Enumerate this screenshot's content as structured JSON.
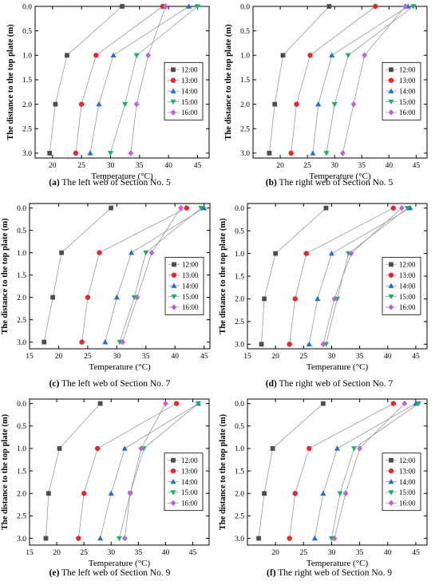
{
  "panels": [
    {
      "letter": "(a)",
      "caption": "The left web of Section No. 5"
    },
    {
      "letter": "(b)",
      "caption": "The right web of Section No. 5"
    },
    {
      "letter": "(c)",
      "caption": "The left web of Section No. 7"
    },
    {
      "letter": "(d)",
      "caption": "The right web of Section No. 7"
    },
    {
      "letter": "(e)",
      "caption": "The left web of Section No. 9"
    },
    {
      "letter": "(f)",
      "caption": "The right web of Section No. 9"
    }
  ],
  "series_style": [
    {
      "name": "12:00",
      "color": "#4d4d4d",
      "marker": "square"
    },
    {
      "name": "13:00",
      "color": "#e8262b",
      "marker": "circle"
    },
    {
      "name": "14:00",
      "color": "#1f6fd6",
      "marker": "triangle-up"
    },
    {
      "name": "15:00",
      "color": "#17b35f",
      "marker": "triangle-down"
    },
    {
      "name": "16:00",
      "color": "#c25ee0",
      "marker": "diamond"
    }
  ],
  "chart_data": [
    {
      "type": "line",
      "xlabel": "Temperature (°C)",
      "ylabel": "The distance to the top plate (m)",
      "xlim": [
        17,
        47
      ],
      "xticks": [
        20,
        25,
        30,
        35,
        40,
        45
      ],
      "ylim": [
        0,
        3.1
      ],
      "y_inverted": true,
      "yticks": [
        "0.0",
        "0.5",
        "1.0",
        "1.5",
        "2.0",
        "2.5",
        "3.0"
      ],
      "legend": "center-right",
      "y": [
        0,
        1,
        2,
        3
      ],
      "series": [
        {
          "name": "12:00",
          "x": [
            32.0,
            22.5,
            20.5,
            19.5
          ]
        },
        {
          "name": "13:00",
          "x": [
            39.0,
            27.5,
            25.0,
            24.0
          ]
        },
        {
          "name": "14:00",
          "x": [
            43.5,
            30.5,
            28.0,
            26.5
          ]
        },
        {
          "name": "15:00",
          "x": [
            45.0,
            34.5,
            32.5,
            30.0
          ]
        },
        {
          "name": "16:00",
          "x": [
            39.5,
            36.5,
            34.5,
            33.5
          ]
        }
      ]
    },
    {
      "type": "line",
      "xlabel": "Temperature (°C)",
      "ylabel": "The distance to the top plate (m)",
      "xlim": [
        15,
        47
      ],
      "xticks": [
        20,
        25,
        30,
        35,
        40,
        45
      ],
      "ylim": [
        0,
        3.1
      ],
      "y_inverted": true,
      "yticks": [
        "0.0",
        "0.5",
        "1.0",
        "1.5",
        "2.0",
        "2.5",
        "3.0"
      ],
      "legend": "center-right",
      "y": [
        0,
        1,
        2,
        3
      ],
      "series": [
        {
          "name": "12:00",
          "x": [
            29.0,
            20.5,
            19.0,
            18.0
          ]
        },
        {
          "name": "13:00",
          "x": [
            37.5,
            25.5,
            23.0,
            22.0
          ]
        },
        {
          "name": "14:00",
          "x": [
            43.5,
            29.5,
            27.0,
            26.0
          ]
        },
        {
          "name": "15:00",
          "x": [
            44.5,
            32.5,
            30.0,
            28.5
          ]
        },
        {
          "name": "16:00",
          "x": [
            43.0,
            35.5,
            33.5,
            31.5
          ]
        }
      ]
    },
    {
      "type": "line",
      "xlabel": "Temperature (°C)",
      "ylabel": "The distance to the top plate (m)",
      "xlim": [
        15,
        46
      ],
      "xticks": [
        15,
        20,
        25,
        30,
        35,
        40,
        45
      ],
      "ylim": [
        -0.1,
        3.15
      ],
      "y_inverted": true,
      "yticks": [
        "0.0",
        "0.5",
        "1.0",
        "1.5",
        "2.0",
        "2.5",
        "3.0"
      ],
      "legend": "center-right",
      "y": [
        0,
        1,
        2,
        3
      ],
      "series": [
        {
          "name": "12:00",
          "x": [
            29.0,
            20.5,
            19.0,
            17.5
          ]
        },
        {
          "name": "13:00",
          "x": [
            42.0,
            27.0,
            25.0,
            24.0
          ]
        },
        {
          "name": "14:00",
          "x": [
            45.0,
            32.5,
            30.0,
            28.0
          ]
        },
        {
          "name": "15:00",
          "x": [
            44.5,
            35.0,
            33.0,
            30.5
          ]
        },
        {
          "name": "16:00",
          "x": [
            41.0,
            36.0,
            33.5,
            31.0
          ]
        }
      ]
    },
    {
      "type": "line",
      "xlabel": "Temperature (°C)",
      "ylabel": "The distance to the top plate (m)",
      "xlim": [
        15,
        47
      ],
      "xticks": [
        15,
        20,
        25,
        30,
        35,
        40,
        45
      ],
      "ylim": [
        -0.1,
        3.1
      ],
      "y_inverted": true,
      "yticks": [
        "0.0",
        "0.5",
        "1.0",
        "1.5",
        "2.0",
        "2.5",
        "3.0"
      ],
      "legend": "center-right",
      "y": [
        0,
        1,
        2,
        3
      ],
      "series": [
        {
          "name": "12:00",
          "x": [
            29.0,
            20.0,
            18.0,
            17.5
          ]
        },
        {
          "name": "13:00",
          "x": [
            41.0,
            25.5,
            23.5,
            22.5
          ]
        },
        {
          "name": "14:00",
          "x": [
            44.0,
            30.0,
            27.5,
            26.0
          ]
        },
        {
          "name": "15:00",
          "x": [
            43.5,
            33.0,
            31.0,
            29.0
          ]
        },
        {
          "name": "16:00",
          "x": [
            42.5,
            33.5,
            30.5,
            28.5
          ]
        }
      ]
    },
    {
      "type": "line",
      "xlabel": "Temperature (°C)",
      "ylabel": "The distance to the top plate (m)",
      "xlim": [
        15,
        48
      ],
      "xticks": [
        15,
        20,
        25,
        30,
        35,
        40,
        45
      ],
      "ylim": [
        -0.1,
        3.15
      ],
      "y_inverted": true,
      "yticks": [
        "0.0",
        "0.5",
        "1.0",
        "1.5",
        "2.0",
        "2.5",
        "3.0"
      ],
      "legend": "center-right",
      "y": [
        0,
        1,
        2,
        3
      ],
      "series": [
        {
          "name": "12:00",
          "x": [
            28.0,
            20.5,
            18.5,
            18.0
          ]
        },
        {
          "name": "13:00",
          "x": [
            42.0,
            27.5,
            25.0,
            24.0
          ]
        },
        {
          "name": "14:00",
          "x": [
            46.0,
            32.5,
            30.0,
            28.0
          ]
        },
        {
          "name": "15:00",
          "x": [
            46.0,
            36.0,
            33.5,
            31.5
          ]
        },
        {
          "name": "16:00",
          "x": [
            40.0,
            35.5,
            33.5,
            32.5
          ]
        }
      ]
    },
    {
      "type": "line",
      "xlabel": "Temperature (°C)",
      "ylabel": "The distance to the top plate (m)",
      "xlim": [
        15,
        47
      ],
      "xticks": [
        20,
        25,
        30,
        35,
        40,
        45
      ],
      "ylim": [
        -0.1,
        3.15
      ],
      "y_inverted": true,
      "yticks": [
        "0.0",
        "0.5",
        "1.0",
        "1.5",
        "2.0",
        "2.5",
        "3.0"
      ],
      "legend": "center-right",
      "y": [
        0,
        1,
        2,
        3
      ],
      "series": [
        {
          "name": "12:00",
          "x": [
            28.5,
            19.5,
            18.0,
            17.0
          ]
        },
        {
          "name": "13:00",
          "x": [
            41.0,
            26.0,
            23.5,
            22.5
          ]
        },
        {
          "name": "14:00",
          "x": [
            45.0,
            31.0,
            28.5,
            27.0
          ]
        },
        {
          "name": "15:00",
          "x": [
            45.5,
            34.0,
            31.5,
            30.0
          ]
        },
        {
          "name": "16:00",
          "x": [
            43.0,
            35.0,
            32.5,
            30.5
          ]
        }
      ]
    }
  ]
}
